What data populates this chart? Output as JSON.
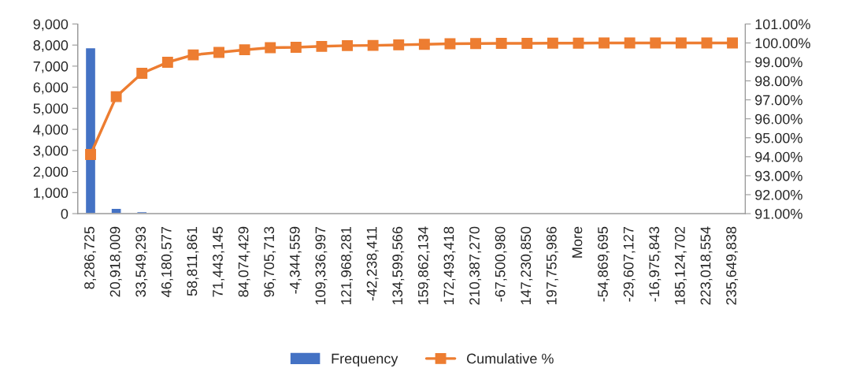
{
  "chart_data": {
    "type": "bar",
    "categories": [
      "8,286,725",
      "20,918,009",
      "33,549,293",
      "46,180,577",
      "58,811,861",
      "71,443,145",
      "84,074,429",
      "96,705,713",
      "-4,344,559",
      "109,336,997",
      "121,968,281",
      "-42,238,411",
      "134,599,566",
      "159,862,134",
      "172,493,418",
      "210,387,270",
      "-67,500,980",
      "147,230,850",
      "197,755,986",
      "More",
      "-54,869,695",
      "-29,607,127",
      "-16,975,843",
      "185,124,702",
      "223,018,554",
      "235,649,838"
    ],
    "series": [
      {
        "name": "Frequency",
        "color": "#4472c4",
        "values": [
          7870,
          250,
          90,
          null,
          null,
          null,
          null,
          null,
          null,
          null,
          null,
          null,
          null,
          null,
          null,
          null,
          null,
          null,
          null,
          null,
          null,
          null,
          null,
          null,
          null,
          null
        ]
      },
      {
        "name": "Cumulative %",
        "type": "line",
        "axis": "y2",
        "color": "#ed7d31",
        "marker": "square",
        "values": [
          94.12,
          97.17,
          98.4,
          98.98,
          99.37,
          99.5,
          99.64,
          99.75,
          99.77,
          99.82,
          99.86,
          99.87,
          99.9,
          99.93,
          99.96,
          99.97,
          99.98,
          99.98,
          99.99,
          99.99,
          100,
          100,
          100,
          100,
          100,
          100
        ]
      }
    ],
    "ylim": [
      0,
      9000
    ],
    "yticks": [
      {
        "value": 0,
        "label": "0"
      },
      {
        "value": 1000,
        "label": "1,000"
      },
      {
        "value": 2000,
        "label": "2,000"
      },
      {
        "value": 3000,
        "label": "3,000"
      },
      {
        "value": 4000,
        "label": "4,000"
      },
      {
        "value": 5000,
        "label": "5,000"
      },
      {
        "value": 6000,
        "label": "6,000"
      },
      {
        "value": 7000,
        "label": "7,000"
      },
      {
        "value": 8000,
        "label": "8,000"
      },
      {
        "value": 9000,
        "label": "9,000"
      }
    ],
    "y2lim": [
      91,
      101
    ],
    "y2ticks": [
      {
        "value": 91,
        "label": "91.00%"
      },
      {
        "value": 92,
        "label": "92.00%"
      },
      {
        "value": 93,
        "label": "93.00%"
      },
      {
        "value": 94,
        "label": "94.00%"
      },
      {
        "value": 95,
        "label": "95.00%"
      },
      {
        "value": 96,
        "label": "96.00%"
      },
      {
        "value": 97,
        "label": "97.00%"
      },
      {
        "value": 98,
        "label": "98.00%"
      },
      {
        "value": 99,
        "label": "99.00%"
      },
      {
        "value": 100,
        "label": "100.00%"
      },
      {
        "value": 101,
        "label": "101.00%"
      }
    ],
    "grid": false,
    "legend": "bottom"
  }
}
